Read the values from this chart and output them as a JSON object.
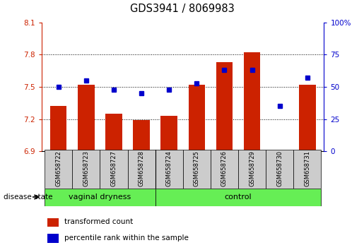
{
  "title": "GDS3941 / 8069983",
  "samples": [
    "GSM658722",
    "GSM658723",
    "GSM658727",
    "GSM658728",
    "GSM658724",
    "GSM658725",
    "GSM658726",
    "GSM658729",
    "GSM658730",
    "GSM658731"
  ],
  "red_values": [
    7.32,
    7.52,
    7.25,
    7.19,
    7.23,
    7.52,
    7.73,
    7.82,
    6.91,
    7.52
  ],
  "blue_values": [
    50,
    55,
    48,
    45,
    48,
    53,
    63,
    63,
    35,
    57
  ],
  "ylim_left": [
    6.9,
    8.1
  ],
  "ylim_right": [
    0,
    100
  ],
  "yticks_left": [
    6.9,
    7.2,
    7.5,
    7.8,
    8.1
  ],
  "yticks_right": [
    0,
    25,
    50,
    75,
    100
  ],
  "ytick_labels_left": [
    "6.9",
    "7.2",
    "7.5",
    "7.8",
    "8.1"
  ],
  "ytick_labels_right": [
    "0",
    "25",
    "50",
    "75",
    "100%"
  ],
  "disease_state_label": "disease state",
  "bar_color": "#cc2200",
  "dot_color": "#0000cc",
  "legend_red_label": "transformed count",
  "legend_blue_label": "percentile rank within the sample",
  "axis_color_left": "#cc2200",
  "axis_color_right": "#0000cc",
  "base_value": 6.9,
  "green_color": "#66ee55",
  "gray_color": "#cccccc",
  "group_defs": [
    {
      "start": 0,
      "end": 3,
      "label": "vaginal dryness"
    },
    {
      "start": 4,
      "end": 9,
      "label": "control"
    }
  ],
  "dotted_lines": [
    7.2,
    7.5,
    7.8
  ]
}
